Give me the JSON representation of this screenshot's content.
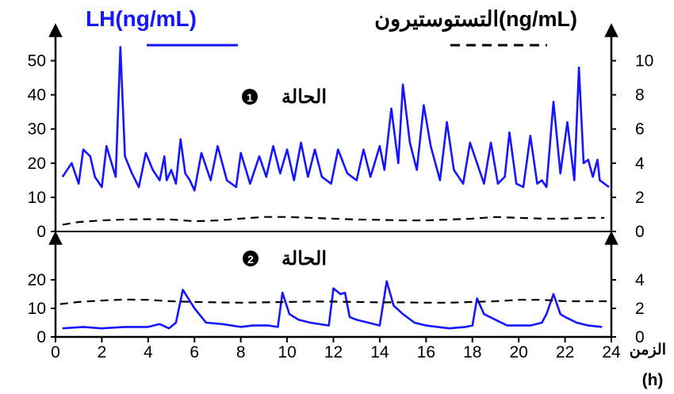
{
  "chart_data": [
    {
      "type": "line",
      "panel_label": "الحالة",
      "panel_number": "1",
      "legend_left_label": "LH(ng/mL)",
      "legend_right_label": "التستوستيرون(ng/mL)",
      "x_unit_label": "الزمن",
      "x_unit": "(h)",
      "xlim": [
        0,
        24
      ],
      "x_ticks": [
        "0",
        "2",
        "4",
        "6",
        "8",
        "10",
        "12",
        "14",
        "16",
        "18",
        "20",
        "22",
        "24"
      ],
      "ylim_left": [
        0,
        55
      ],
      "y_ticks_left": [
        "0",
        "10",
        "20",
        "30",
        "40",
        "50"
      ],
      "ylim_right": [
        0,
        11
      ],
      "y_ticks_right": [
        "0",
        "2",
        "4",
        "6",
        "8",
        "10"
      ],
      "colors": {
        "lh": "#1515ff",
        "testosterone": "#000000"
      },
      "series": [
        {
          "name": "LH(ng/mL)",
          "axis": "left",
          "style": "solid",
          "x": [
            0.3,
            0.7,
            1.0,
            1.2,
            1.5,
            1.7,
            2.0,
            2.2,
            2.6,
            2.8,
            3.0,
            3.3,
            3.6,
            3.9,
            4.2,
            4.5,
            4.7,
            4.8,
            5.0,
            5.2,
            5.4,
            5.6,
            5.8,
            6.0,
            6.3,
            6.7,
            7.0,
            7.4,
            7.8,
            8.0,
            8.4,
            8.8,
            9.1,
            9.4,
            9.7,
            10.0,
            10.3,
            10.6,
            10.9,
            11.2,
            11.5,
            11.9,
            12.2,
            12.6,
            13.0,
            13.3,
            13.6,
            14.0,
            14.2,
            14.5,
            14.8,
            15.0,
            15.3,
            15.6,
            15.9,
            16.2,
            16.6,
            16.9,
            17.2,
            17.6,
            17.9,
            18.2,
            18.5,
            18.8,
            19.1,
            19.4,
            19.6,
            19.9,
            20.2,
            20.5,
            20.8,
            21.0,
            21.2,
            21.5,
            21.8,
            22.1,
            22.4,
            22.6,
            22.8,
            23.0,
            23.2,
            23.4,
            23.5,
            23.7,
            23.9
          ],
          "y": [
            16,
            20,
            14,
            24,
            22,
            16,
            13,
            25,
            16,
            54,
            22,
            17,
            13,
            23,
            18,
            15,
            22,
            15,
            18,
            14,
            27,
            17,
            15,
            12,
            23,
            15,
            25,
            15,
            13,
            23,
            14,
            22,
            16,
            25,
            17,
            24,
            15,
            26,
            16,
            24,
            16,
            14,
            24,
            17,
            15,
            24,
            16,
            25,
            18,
            36,
            20,
            43,
            26,
            18,
            37,
            25,
            15,
            32,
            18,
            14,
            26,
            20,
            14,
            26,
            14,
            16,
            29,
            14,
            13,
            28,
            14,
            15,
            13,
            38,
            17,
            32,
            15,
            48,
            20,
            21,
            16,
            21,
            15,
            14,
            13
          ]
        },
        {
          "name": "التستوستيرون(ng/mL)",
          "axis": "right",
          "style": "dashed",
          "x": [
            0.3,
            1,
            2,
            3,
            4,
            5,
            6,
            7,
            8,
            9,
            10,
            11,
            12,
            13,
            14,
            15,
            16,
            17,
            18,
            19,
            20,
            21,
            22,
            23,
            23.7
          ],
          "y": [
            0.4,
            0.55,
            0.65,
            0.7,
            0.72,
            0.7,
            0.6,
            0.65,
            0.75,
            0.85,
            0.85,
            0.8,
            0.75,
            0.7,
            0.68,
            0.65,
            0.65,
            0.7,
            0.75,
            0.85,
            0.8,
            0.75,
            0.75,
            0.8,
            0.8
          ]
        }
      ]
    },
    {
      "type": "line",
      "panel_label": "الحالة",
      "panel_number": "2",
      "xlim": [
        0,
        24
      ],
      "x_ticks": [
        "0",
        "2",
        "4",
        "6",
        "8",
        "10",
        "12",
        "14",
        "16",
        "18",
        "20",
        "22",
        "24"
      ],
      "ylim_left": [
        0,
        25
      ],
      "y_ticks_left": [
        "0",
        "10",
        "20"
      ],
      "ylim_right": [
        0,
        5
      ],
      "y_ticks_right": [
        "0",
        "2",
        "4"
      ],
      "series": [
        {
          "name": "LH(ng/mL)",
          "axis": "left",
          "style": "solid",
          "x": [
            0.3,
            1.2,
            2.0,
            3.0,
            4.0,
            4.5,
            4.9,
            5.2,
            5.5,
            6.0,
            6.5,
            7.2,
            8.0,
            8.5,
            9.2,
            9.6,
            9.8,
            10.1,
            10.5,
            11.0,
            11.8,
            12.0,
            12.3,
            12.5,
            12.7,
            13.0,
            13.5,
            14.0,
            14.3,
            14.6,
            15.0,
            15.5,
            16.0,
            16.5,
            17.0,
            17.7,
            18.0,
            18.2,
            18.5,
            19.0,
            19.5,
            20.0,
            20.5,
            21.0,
            21.2,
            21.5,
            21.8,
            22.0,
            22.5,
            23.0,
            23.6
          ],
          "y": [
            3,
            3.5,
            3,
            3.5,
            3.5,
            4.5,
            3,
            5,
            16.5,
            10,
            5,
            4.5,
            3.5,
            4,
            4,
            3.5,
            15.5,
            8,
            6,
            5,
            4,
            17,
            15,
            15.5,
            7,
            6,
            5,
            4,
            19.5,
            11,
            8,
            5,
            4,
            3.5,
            3,
            3.5,
            4,
            13.5,
            8,
            6,
            4,
            4,
            4,
            5,
            8,
            15,
            8,
            7,
            5,
            4,
            3.5
          ]
        },
        {
          "name": "التستوستيرون(ng/mL)",
          "axis": "right",
          "style": "dashed",
          "x": [
            0.2,
            1,
            2,
            3,
            4,
            5,
            6,
            7,
            8,
            9,
            10,
            11,
            12,
            13,
            14,
            15,
            16,
            17,
            18,
            19,
            20,
            21,
            22,
            23,
            23.8
          ],
          "y": [
            2.3,
            2.45,
            2.55,
            2.62,
            2.6,
            2.5,
            2.45,
            2.42,
            2.4,
            2.42,
            2.45,
            2.48,
            2.48,
            2.45,
            2.42,
            2.42,
            2.4,
            2.4,
            2.45,
            2.5,
            2.6,
            2.6,
            2.5,
            2.5,
            2.5
          ]
        }
      ]
    }
  ]
}
